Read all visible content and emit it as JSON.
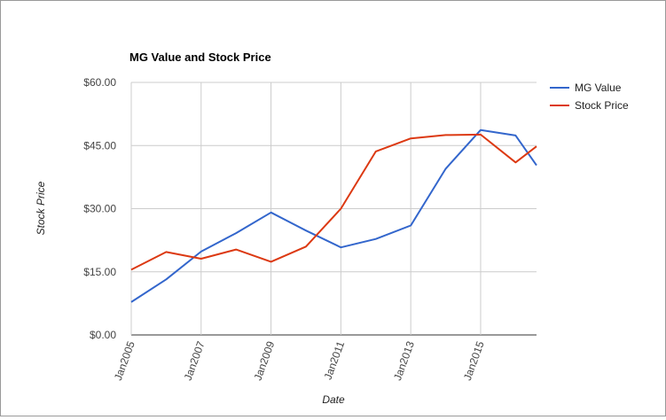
{
  "chart_data": {
    "type": "line",
    "title": "MG Value and Stock Price",
    "xlabel": "Date",
    "ylabel": "Stock Price",
    "x": [
      2005,
      2006,
      2007,
      2008,
      2009,
      2010,
      2011,
      2012,
      2013,
      2014,
      2015,
      2016,
      2016.6
    ],
    "x_tick_values": [
      2005,
      2007,
      2009,
      2011,
      2013,
      2015
    ],
    "x_tick_labels": [
      "Jan2005",
      "Jan2007",
      "Jan2009",
      "Jan2011",
      "Jan2013",
      "Jan2015"
    ],
    "xlim": [
      2005,
      2016.6
    ],
    "ylim": [
      0,
      60
    ],
    "y_tick_values": [
      0,
      15,
      30,
      45,
      60
    ],
    "y_tick_labels": [
      "$0.00",
      "$15.00",
      "$30.00",
      "$45.00",
      "$60.00"
    ],
    "grid": true,
    "legend_position": "right",
    "series": [
      {
        "name": "MG Value",
        "color": "#3366cc",
        "values": [
          7.8,
          13.2,
          19.8,
          24.2,
          29.1,
          24.8,
          20.8,
          22.8,
          26.0,
          39.5,
          48.7,
          47.4,
          40.3
        ]
      },
      {
        "name": "Stock Price",
        "color": "#dc3912",
        "values": [
          15.5,
          19.7,
          18.1,
          20.3,
          17.4,
          21.0,
          30.0,
          43.6,
          46.7,
          47.5,
          47.6,
          41.0,
          44.8
        ]
      }
    ]
  }
}
